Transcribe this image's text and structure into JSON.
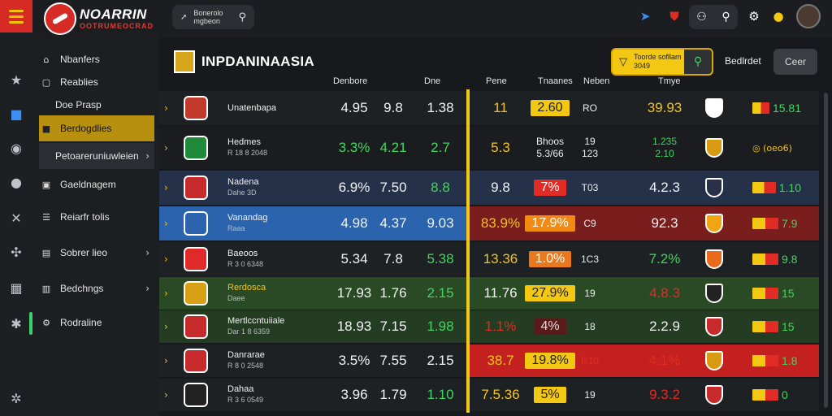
{
  "header": {
    "brand": "NOARRIN",
    "brand_sub": "OOTRUMEOCRAD",
    "search_label": "Bonerolo mgbeon",
    "icons": [
      "search-icon",
      "sync-icon",
      "shield-icon",
      "settings-icon",
      "user-icon",
      "gear-icon",
      "notification-icon"
    ]
  },
  "sidebar": {
    "items": [
      {
        "label": "Nbanfers",
        "icon": "home-icon"
      },
      {
        "label": "Reablies",
        "icon": "square-icon"
      },
      {
        "label": "Doe Prasp",
        "icon": ""
      },
      {
        "label": "Berdogdlies",
        "icon": "square-icon"
      },
      {
        "label": "Petoareruniuwleien",
        "icon": ""
      },
      {
        "label": "Gaeldnagem",
        "icon": "calendar-icon"
      },
      {
        "label": "Reiarfr tolis",
        "icon": "list-icon"
      },
      {
        "label": "Sobrer lieo",
        "icon": "doc-icon"
      },
      {
        "label": "Bedchngs",
        "icon": "chart-icon"
      },
      {
        "label": "Rodraline",
        "icon": "gear-icon"
      }
    ]
  },
  "main": {
    "title": "INPDANINAASIA",
    "select_text": "Toorde sofllam\n3049",
    "right_label": "Bedlrdet",
    "right_button": "Ceer",
    "columns": [
      "Denbore",
      "Dne",
      "Pene",
      "Tnaanes",
      "Neben",
      "Tmye"
    ]
  },
  "colors": {
    "accent": "#f2c812",
    "green": "#3fd65e",
    "red": "#e12b25",
    "yellow": "#f3c41a",
    "blue_row": "#2b63ad"
  },
  "rows": [
    {
      "name": "Unatenbapa",
      "sub": "",
      "c1": "4.95",
      "c2": "9.8",
      "c3": "1.38",
      "c4": "11",
      "pill": "2.60",
      "c6": "RO",
      "c7": "39.93",
      "bar": "15.81",
      "bg": "#1e2124",
      "c4color": "#f3c41a",
      "c7color": "#f3c41a",
      "pillbg": "#f2c812",
      "pillcolor": "#222",
      "crest": "#c23a2c",
      "club": "#ffffff"
    },
    {
      "name": "Hedmes",
      "sub": "R 18 8 2048",
      "c1": "3.3%",
      "c2": "4.21",
      "c3": "2.7",
      "c4": "5.3",
      "pill": "Bhoos\n5.3/66",
      "c6": "19\n123",
      "c7": "1.235\n2.10",
      "bar": "◎ (oeo6)",
      "bg": "#1a1c1f",
      "c1color": "#3fd65e",
      "c2color": "#3fd65e",
      "c3color": "#3fd65e",
      "c4color": "#f3c41a",
      "pillbg": "transparent",
      "pillcolor": "#eee",
      "c7color": "#3fd65e",
      "crest": "#1f8a3a",
      "club": "#d89a12"
    },
    {
      "name": "Nadena",
      "sub": "Dahe 3D",
      "c1": "6.9%",
      "c2": "7.50",
      "c3": "8.8",
      "c4": "9.8",
      "pill": "7%",
      "c6": "T03",
      "c7": "4.2.3",
      "bar": "1.10",
      "bg": "#253049",
      "c3color": "#3fd65e",
      "pillbg": "#e12b25",
      "pillcolor": "#fff",
      "crest": "#c62a2a",
      "club": "#2a3048"
    },
    {
      "name": "Vanandag",
      "sub": "Raaa",
      "c1": "4.98",
      "c2": "4.37",
      "c3": "9.03",
      "c4": "83.9%",
      "pill": "17.9%",
      "c6": "C9",
      "c7": "92.3",
      "bar": "7.9",
      "bg": "#2b63ad",
      "c4color": "#f3c41a",
      "pillbg": "#f28a12",
      "pillcolor": "#fff",
      "crest": "#2b63ad",
      "club": "#f2a512",
      "rowright": "#7a1d1d"
    },
    {
      "name": "Baeoos",
      "sub": "R 3 0 6348",
      "c1": "5.34",
      "c2": "7.8",
      "c3": "5.38",
      "c4": "13.36",
      "pill": "1.0%",
      "c6": "1C3",
      "c7": "7.2%",
      "bar": "9.8",
      "bg": "#1e2124",
      "c3color": "#3fd65e",
      "c4color": "#f3c41a",
      "pillbg": "#e8791c",
      "pillcolor": "#fff",
      "c7color": "#3fd65e",
      "crest": "#e02a2a",
      "club": "#e86a1a"
    },
    {
      "name": "Rerdosca",
      "sub": "Daee",
      "c1": "17.93",
      "c2": "1.76",
      "c3": "2.15",
      "c4": "11.76",
      "pill": "27.9%",
      "c6": "19",
      "c7": "4.8.3",
      "bar": "15",
      "bg": "#2a4a26",
      "namecolor": "#f3c41a",
      "pillbg": "#f2c812",
      "pillcolor": "#222",
      "c7color": "#e12b25",
      "crest": "#d8a014",
      "club": "#222",
      "c3color": "#3fd65e"
    },
    {
      "name": "Mertlccntuiiale",
      "sub": "Dar 1 8 6359",
      "c1": "18.93",
      "c2": "7.15",
      "c3": "1.98",
      "c4": "1.1%",
      "pill": "4%",
      "c6": "18",
      "c7": "2.2.9",
      "bar": "15",
      "bg": "#243d22",
      "c3color": "#3fd65e",
      "c4color": "#e12b25",
      "pillbg": "#5a1a1a",
      "pillcolor": "#ddd",
      "crest": "#c62a2a",
      "club": "#c62a2a"
    },
    {
      "name": "Danrarae",
      "sub": "R 8 0 2548",
      "c1": "3.5%",
      "c2": "7.55",
      "c3": "2.15",
      "c4": "38.7",
      "pill": "19.8%",
      "c6": "R10",
      "c7": "4.1%",
      "bar": "1.8",
      "bg": "#1e2124",
      "c4color": "#f3c41a",
      "pillbg": "#f2c812",
      "pillcolor": "#222",
      "c6color": "#e12b25",
      "c7color": "#e12b25",
      "crest": "#c62a2a",
      "club": "#d89a12",
      "rowright": "#c42020"
    },
    {
      "name": "Dahaa",
      "sub": "R 3 6 0549",
      "c1": "3.96",
      "c2": "1.79",
      "c3": "1.10",
      "c4": "7.5.36",
      "pill": "5%",
      "c6": "19",
      "c7": "9.3.2",
      "bar": "0",
      "bg": "#1e2124",
      "c3color": "#3fd65e",
      "c4color": "#f3c41a",
      "pillbg": "#f2c812",
      "pillcolor": "#222",
      "c7color": "#e12b25",
      "crest": "#222",
      "club": "#c62a2a"
    }
  ]
}
